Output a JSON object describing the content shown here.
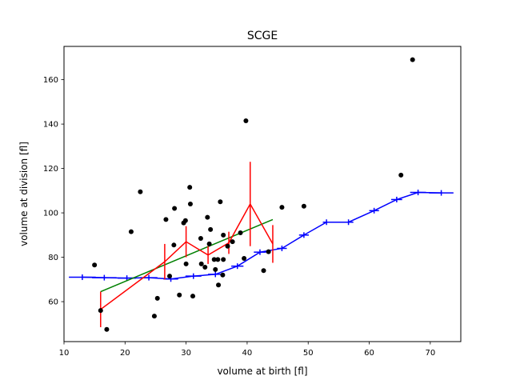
{
  "chart_data": {
    "type": "scatter",
    "title": "SCGE",
    "xlabel": "volume at birth [fl]",
    "ylabel": "volume at division [fl]",
    "xlim": [
      10,
      75
    ],
    "ylim": [
      42,
      175
    ],
    "x_ticks": [
      10,
      20,
      30,
      40,
      50,
      60,
      70
    ],
    "y_ticks": [
      60,
      80,
      100,
      120,
      140,
      160
    ],
    "grid": false,
    "legend": "none",
    "colors": {
      "scatter": "#000000",
      "binned_mean": "#ff0000",
      "linear_fit": "#008000",
      "reference": "#0000ff"
    },
    "scatter_points": [
      {
        "x": 15.0,
        "y": 76.5
      },
      {
        "x": 16.0,
        "y": 56.0
      },
      {
        "x": 17.0,
        "y": 47.5
      },
      {
        "x": 21.0,
        "y": 91.5
      },
      {
        "x": 22.5,
        "y": 109.5
      },
      {
        "x": 24.8,
        "y": 53.5
      },
      {
        "x": 25.3,
        "y": 61.5
      },
      {
        "x": 26.7,
        "y": 97.0
      },
      {
        "x": 27.3,
        "y": 71.5
      },
      {
        "x": 28.0,
        "y": 85.5
      },
      {
        "x": 28.1,
        "y": 102.0
      },
      {
        "x": 28.9,
        "y": 63.0
      },
      {
        "x": 29.6,
        "y": 95.5
      },
      {
        "x": 29.9,
        "y": 96.5
      },
      {
        "x": 30.0,
        "y": 77.0
      },
      {
        "x": 30.6,
        "y": 111.5
      },
      {
        "x": 30.7,
        "y": 104.0
      },
      {
        "x": 31.1,
        "y": 62.5
      },
      {
        "x": 32.4,
        "y": 88.5
      },
      {
        "x": 32.5,
        "y": 77.0
      },
      {
        "x": 33.1,
        "y": 75.5
      },
      {
        "x": 33.5,
        "y": 98.0
      },
      {
        "x": 33.8,
        "y": 86.0
      },
      {
        "x": 34.0,
        "y": 92.5
      },
      {
        "x": 34.6,
        "y": 79.0
      },
      {
        "x": 34.8,
        "y": 74.5
      },
      {
        "x": 35.2,
        "y": 79.0
      },
      {
        "x": 35.3,
        "y": 67.5
      },
      {
        "x": 35.6,
        "y": 105.0
      },
      {
        "x": 36.0,
        "y": 72.0
      },
      {
        "x": 36.1,
        "y": 90.0
      },
      {
        "x": 36.1,
        "y": 79.0
      },
      {
        "x": 36.8,
        "y": 85.0
      },
      {
        "x": 37.6,
        "y": 87.0
      },
      {
        "x": 38.9,
        "y": 91.0
      },
      {
        "x": 39.5,
        "y": 79.5
      },
      {
        "x": 39.8,
        "y": 141.5
      },
      {
        "x": 42.7,
        "y": 74.0
      },
      {
        "x": 43.5,
        "y": 82.5
      },
      {
        "x": 45.7,
        "y": 102.5
      },
      {
        "x": 49.3,
        "y": 103.0
      },
      {
        "x": 65.2,
        "y": 117.0
      },
      {
        "x": 67.1,
        "y": 169.0
      }
    ],
    "binned_mean": {
      "x": [
        16.0,
        26.5,
        30.0,
        33.6,
        37.0,
        40.5,
        44.2
      ],
      "y": [
        56.5,
        78.0,
        87.0,
        81.0,
        86.5,
        104.0,
        86.0
      ],
      "yerr": [
        8.0,
        8.0,
        7.0,
        4.0,
        5.0,
        19.0,
        8.5
      ]
    },
    "linear_fit": {
      "x": [
        16.0,
        44.2
      ],
      "y": [
        64.5,
        97.0
      ]
    },
    "reference_curve": {
      "x": [
        13.0,
        16.6,
        20.3,
        23.9,
        27.5,
        31.2,
        34.8,
        38.4,
        42.1,
        45.7,
        49.3,
        53.0,
        56.6,
        60.8,
        64.5,
        68.0,
        71.8
      ],
      "y": [
        71.0,
        70.8,
        70.6,
        70.8,
        70.2,
        71.5,
        72.3,
        76.0,
        82.3,
        84.0,
        90.0,
        95.8,
        95.8,
        101.0,
        106.0,
        109.2,
        109.0
      ],
      "xerr": [
        2.2,
        2.0,
        1.5,
        1.4,
        1.2,
        1.3,
        1.2,
        1.0,
        1.0,
        0.8,
        0.8,
        0.6,
        0.8,
        0.8,
        0.9,
        1.3,
        2.0
      ]
    }
  }
}
